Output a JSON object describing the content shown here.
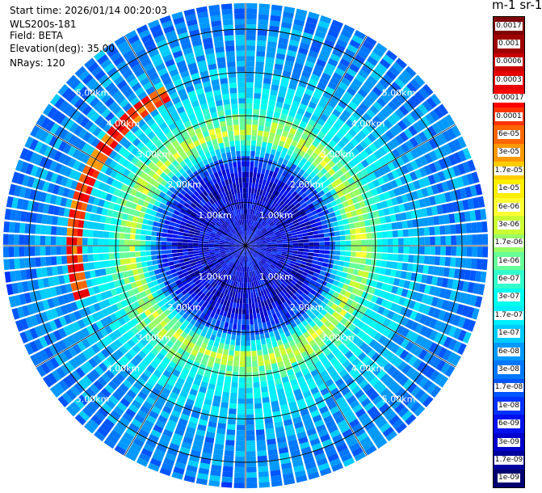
{
  "header": {
    "start_time": "Start time: 2026/01/14 00:20:03",
    "device": "WLS200s-181",
    "field": "Field: BETA",
    "elevation": "Elevation(deg): 35.00",
    "nrays": "NRays: 120"
  },
  "colorbar": {
    "title": "m-1 sr-1",
    "ticks": [
      "0.0017",
      "0.001",
      "0.0006",
      "0.0003",
      "0.00017",
      "0.0001",
      "6e-05",
      "3e-05",
      "1.7e-05",
      "1e-05",
      "6e-06",
      "3e-06",
      "1.7e-06",
      "1e-06",
      "6e-07",
      "3e-07",
      "1.7e-07",
      "1e-07",
      "6e-08",
      "3e-08",
      "1.7e-08",
      "1e-08",
      "6e-09",
      "3e-09",
      "1.7e-09",
      "1e-09"
    ],
    "colors": [
      "#7f0000",
      "#a00000",
      "#c80000",
      "#e60000",
      "#ff0000",
      "#ff3300",
      "#ff6600",
      "#ff9900",
      "#ffcc00",
      "#ffee00",
      "#ffff33",
      "#ccff33",
      "#99ff66",
      "#66ff99",
      "#33ffcc",
      "#00ffee",
      "#00eeff",
      "#00ccff",
      "#0099ff",
      "#0077ff",
      "#0055ff",
      "#0033ff",
      "#0011ee",
      "#0000cc",
      "#00009e",
      "#000070"
    ]
  },
  "chart_data": {
    "type": "heatmap",
    "projection": "polar-ppi",
    "nrays": 120,
    "range_unit": "km",
    "range_rings_km": [
      1,
      2,
      3,
      4,
      5
    ],
    "ring_labels": [
      "1.00km",
      "2.00km",
      "3.00km",
      "4.00km",
      "5.00km"
    ],
    "max_range_km": 5.6,
    "azimuth_spokes_deg": [
      0,
      30,
      60,
      90,
      120,
      150,
      180,
      210,
      240,
      270,
      300,
      330
    ],
    "value_profile": [
      {
        "range_km": 0.0,
        "level": 3
      },
      {
        "range_km": 1.5,
        "level": 2
      },
      {
        "range_km": 2.0,
        "level": 5
      },
      {
        "range_km": 2.6,
        "level": 14
      },
      {
        "range_km": 3.3,
        "level": 9
      },
      {
        "range_km": 4.3,
        "level": 7
      },
      {
        "range_km": 5.6,
        "level": 6
      }
    ],
    "enhanced_sector": {
      "azimuth_from_deg": 250,
      "azimuth_to_deg": 330,
      "range_from_km": 3.8,
      "range_to_km": 4.1,
      "level": 20
    }
  }
}
